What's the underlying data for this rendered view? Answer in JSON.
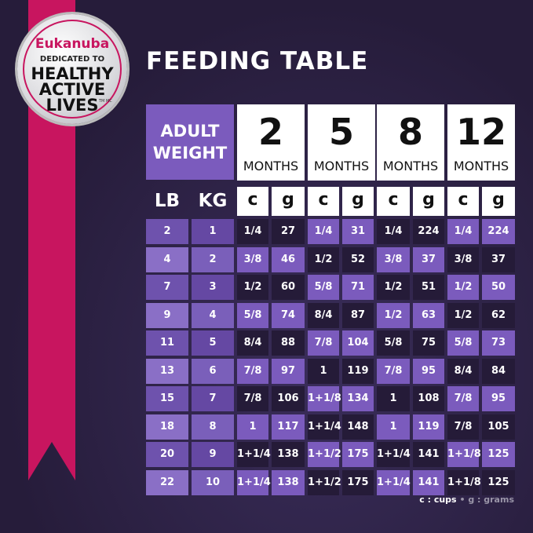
{
  "badge": {
    "brand": "Eukanuba",
    "line1": "DEDICATED TO",
    "line2": "HEALTHY",
    "line3": "ACTIVE",
    "line4": "LIVES",
    "tm": "TM MC"
  },
  "title": "FEEDING TABLE",
  "header": {
    "adult_weight": [
      "ADULT",
      "WEIGHT"
    ],
    "months": [
      {
        "n": "2",
        "u": "MONTHS"
      },
      {
        "n": "5",
        "u": "MONTHS"
      },
      {
        "n": "8",
        "u": "MONTHS"
      },
      {
        "n": "12",
        "u": "MONTHS"
      }
    ],
    "lb": "LB",
    "kg": "KG",
    "c": "c",
    "g": "g"
  },
  "rows": [
    {
      "lb": "2",
      "kg": "1",
      "v": [
        "1/4",
        "27",
        "1/4",
        "31",
        "1/4",
        "224",
        "1/4",
        "224"
      ]
    },
    {
      "lb": "4",
      "kg": "2",
      "v": [
        "3/8",
        "46",
        "1/2",
        "52",
        "3/8",
        "37",
        "3/8",
        "37"
      ]
    },
    {
      "lb": "7",
      "kg": "3",
      "v": [
        "1/2",
        "60",
        "5/8",
        "71",
        "1/2",
        "51",
        "1/2",
        "50"
      ]
    },
    {
      "lb": "9",
      "kg": "4",
      "v": [
        "5/8",
        "74",
        "8/4",
        "87",
        "1/2",
        "63",
        "1/2",
        "62"
      ]
    },
    {
      "lb": "11",
      "kg": "5",
      "v": [
        "8/4",
        "88",
        "7/8",
        "104",
        "5/8",
        "75",
        "5/8",
        "73"
      ]
    },
    {
      "lb": "13",
      "kg": "6",
      "v": [
        "7/8",
        "97",
        "1",
        "119",
        "7/8",
        "95",
        "8/4",
        "84"
      ]
    },
    {
      "lb": "15",
      "kg": "7",
      "v": [
        "7/8",
        "106",
        "1+1/8",
        "134",
        "1",
        "108",
        "7/8",
        "95"
      ]
    },
    {
      "lb": "18",
      "kg": "8",
      "v": [
        "1",
        "117",
        "1+1/4",
        "148",
        "1",
        "119",
        "7/8",
        "105"
      ]
    },
    {
      "lb": "20",
      "kg": "9",
      "v": [
        "1+1/4",
        "138",
        "1+1/2",
        "175",
        "1+1/4",
        "141",
        "1+1/8",
        "125"
      ]
    },
    {
      "lb": "22",
      "kg": "10",
      "v": [
        "1+1/4",
        "138",
        "1+1/2",
        "175",
        "1+1/4",
        "141",
        "1+1/8",
        "125"
      ]
    }
  ],
  "legend": {
    "c": "c : cups",
    "sep": "•",
    "g": "g : grams"
  },
  "colors": {
    "pink": "#c8155f",
    "purple": "#7b5bbd",
    "dark": "#251b38",
    "lavender": "#a58fd6"
  }
}
